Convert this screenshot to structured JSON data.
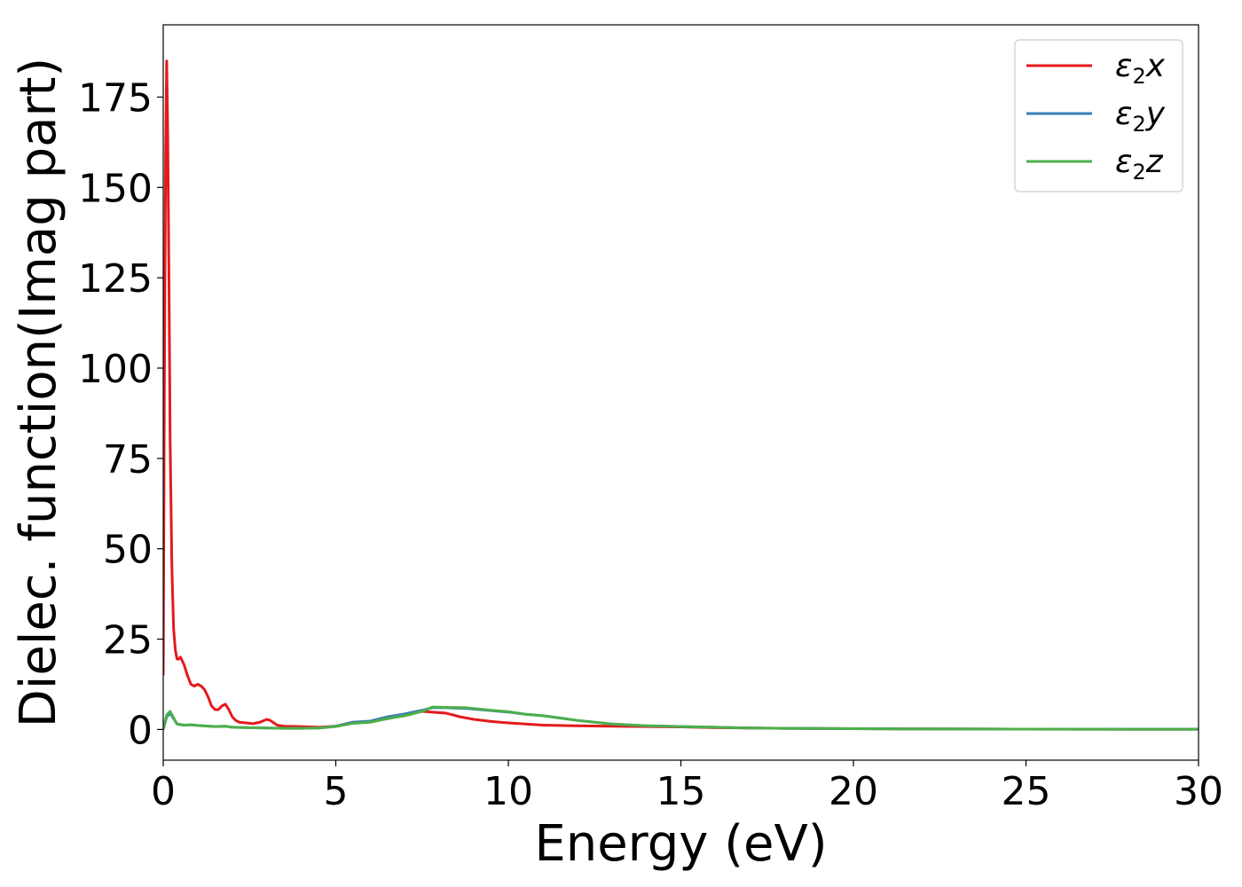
{
  "chart_data": {
    "type": "line",
    "xlabel": "Energy (eV)",
    "ylabel": "Dielec. function(Imag part)",
    "xlim": [
      0,
      30
    ],
    "ylim": [
      -8.5,
      195
    ],
    "xticks": [
      0,
      5,
      10,
      15,
      20,
      25,
      30
    ],
    "yticks": [
      0,
      25,
      50,
      75,
      100,
      125,
      150,
      175
    ],
    "grid": false,
    "legend_position": "top-right",
    "series": [
      {
        "name": "ε2x",
        "legend": {
          "base": "ε",
          "sub": "2",
          "suffix": "x"
        },
        "color": "#e41a1c",
        "x": [
          0,
          0.03,
          0.07,
          0.1,
          0.13,
          0.17,
          0.2,
          0.25,
          0.3,
          0.35,
          0.4,
          0.45,
          0.5,
          0.55,
          0.6,
          0.7,
          0.8,
          0.9,
          1.0,
          1.1,
          1.2,
          1.3,
          1.4,
          1.5,
          1.6,
          1.7,
          1.8,
          1.9,
          2.0,
          2.1,
          2.2,
          2.4,
          2.6,
          2.8,
          3.0,
          3.1,
          3.3,
          3.5,
          4.0,
          4.5,
          5.0,
          5.5,
          6.0,
          6.5,
          7.0,
          7.5,
          7.8,
          8.2,
          8.6,
          9.0,
          9.5,
          10.0,
          10.5,
          11.0,
          12.0,
          13.0,
          14.0,
          15.0,
          16.0,
          17.0,
          18.0,
          20.0,
          22.0,
          25.0,
          28.0,
          30.0
        ],
        "values": [
          15,
          90,
          160,
          185,
          165,
          120,
          80,
          45,
          28,
          22,
          19.5,
          19.5,
          20,
          19,
          18,
          15,
          12.5,
          12,
          12.5,
          12,
          11,
          9,
          6.5,
          5.5,
          5.5,
          6.5,
          7,
          5.5,
          3.5,
          2.5,
          2,
          1.8,
          1.6,
          2,
          2.8,
          2.5,
          1.2,
          0.9,
          0.8,
          0.6,
          0.9,
          2,
          2.2,
          3,
          4,
          5,
          4.8,
          4.5,
          3.5,
          2.8,
          2.2,
          1.8,
          1.5,
          1.2,
          1,
          0.9,
          0.8,
          0.7,
          0.5,
          0.4,
          0.3,
          0.2,
          0.15,
          0.1,
          0.05,
          0.05
        ]
      },
      {
        "name": "ε2y",
        "legend": {
          "base": "ε",
          "sub": "2",
          "suffix": "y"
        },
        "color": "#377eb8",
        "x": [
          0,
          0.1,
          0.2,
          0.3,
          0.4,
          0.6,
          0.8,
          1.0,
          1.5,
          1.8,
          2.0,
          2.5,
          3.0,
          3.5,
          4.0,
          4.5,
          5.0,
          5.5,
          6.0,
          6.5,
          7.0,
          7.5,
          7.8,
          8.2,
          8.8,
          9.5,
          10.0,
          10.5,
          11.0,
          12.0,
          13.0,
          14.0,
          15.0,
          16.0,
          17.0,
          18.0,
          20.0,
          22.0,
          25.0,
          28.0,
          30.0
        ],
        "values": [
          0,
          3.5,
          4.5,
          3,
          1.5,
          1.2,
          1.3,
          1.1,
          0.8,
          0.9,
          0.6,
          0.5,
          0.4,
          0.3,
          0.3,
          0.4,
          0.9,
          2,
          2.3,
          3.5,
          4.3,
          5.3,
          6,
          6,
          5.8,
          5.2,
          4.8,
          4.2,
          3.8,
          2.5,
          1.5,
          1,
          0.8,
          0.6,
          0.4,
          0.3,
          0.2,
          0.15,
          0.1,
          0.05,
          0.05
        ]
      },
      {
        "name": "ε2z",
        "legend": {
          "base": "ε",
          "sub": "2",
          "suffix": "z"
        },
        "color": "#4daf4a",
        "x": [
          0,
          0.1,
          0.2,
          0.3,
          0.4,
          0.6,
          0.8,
          1.0,
          1.5,
          1.8,
          2.0,
          2.5,
          3.0,
          3.5,
          4.0,
          4.5,
          5.0,
          5.5,
          6.0,
          6.5,
          7.0,
          7.5,
          7.8,
          8.2,
          8.8,
          9.5,
          10.0,
          10.5,
          11.0,
          12.0,
          13.0,
          14.0,
          15.0,
          16.0,
          17.0,
          18.0,
          20.0,
          22.0,
          25.0,
          28.0,
          30.0
        ],
        "values": [
          0,
          4,
          5,
          3.2,
          1.5,
          1.2,
          1.3,
          1.1,
          0.8,
          0.9,
          0.6,
          0.5,
          0.4,
          0.3,
          0.3,
          0.4,
          0.8,
          1.7,
          2,
          3,
          3.8,
          5,
          6.2,
          6.1,
          6,
          5.3,
          4.9,
          4.2,
          3.8,
          2.5,
          1.5,
          1,
          0.8,
          0.6,
          0.4,
          0.3,
          0.2,
          0.15,
          0.1,
          0.05,
          0.05
        ]
      }
    ]
  }
}
